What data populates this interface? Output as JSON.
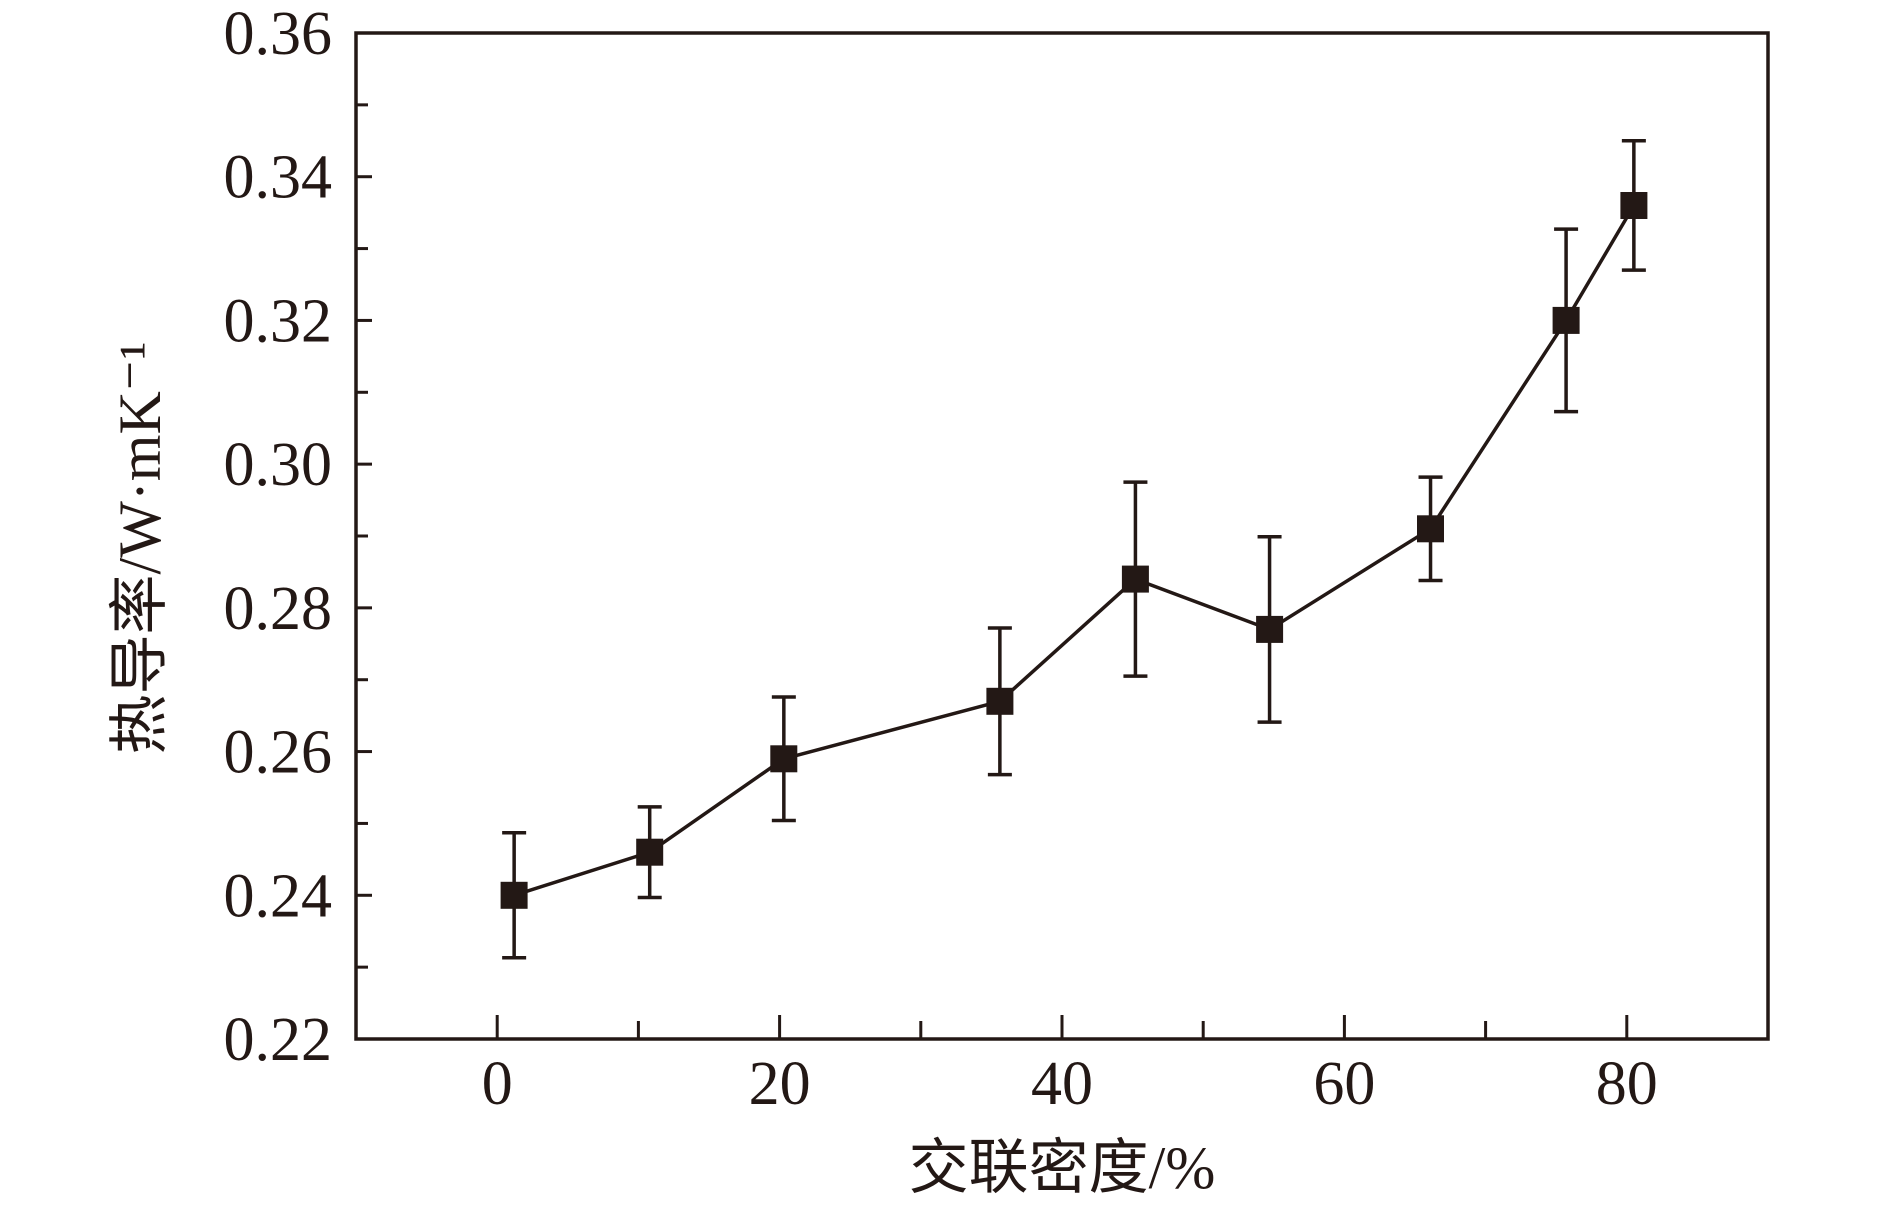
{
  "chart_data": {
    "type": "line",
    "xlabel": "交联密度/%",
    "ylabel": "热导率/W·mK⁻¹",
    "xlim": [
      -10,
      90
    ],
    "ylim": [
      0.22,
      0.36
    ],
    "x_ticks": [
      0,
      20,
      40,
      60,
      80
    ],
    "x_tick_labels": [
      "0",
      "20",
      "40",
      "60",
      "80"
    ],
    "x_minor_ticks": [
      10,
      30,
      50,
      70
    ],
    "y_ticks": [
      0.22,
      0.24,
      0.26,
      0.28,
      0.3,
      0.32,
      0.34,
      0.36
    ],
    "y_tick_labels": [
      "0.22",
      "0.24",
      "0.26",
      "0.28",
      "0.30",
      "0.32",
      "0.34",
      "0.36"
    ],
    "y_minor_ticks": [
      0.23,
      0.25,
      0.27,
      0.29,
      0.31,
      0.33,
      0.35
    ],
    "grid": false,
    "legend": false,
    "series": [
      {
        "x": [
          1.2,
          10.8,
          20.3,
          35.6,
          45.2,
          54.7,
          66.1,
          75.7,
          80.5
        ],
        "y": [
          0.24,
          0.246,
          0.259,
          0.267,
          0.284,
          0.277,
          0.291,
          0.32,
          0.336
        ],
        "error": [
          0.0087,
          0.0063,
          0.0086,
          0.0102,
          0.0135,
          0.0129,
          0.0072,
          0.0127,
          0.009
        ],
        "marker": "filled-square",
        "color": "#231815"
      }
    ]
  }
}
